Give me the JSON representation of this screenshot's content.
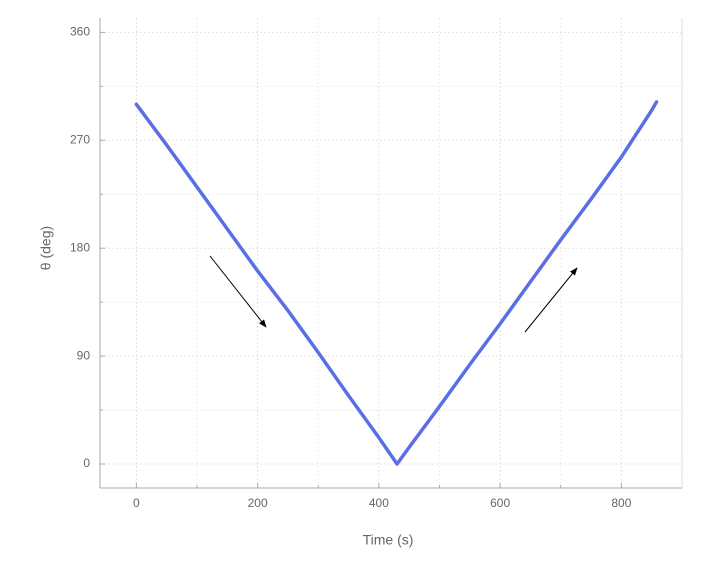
{
  "chart_data": {
    "type": "line",
    "x_label": "Time (s)",
    "y_label": "θ (deg)",
    "x": [
      0,
      50,
      100,
      150,
      200,
      250,
      300,
      350,
      400,
      430,
      450,
      500,
      550,
      600,
      650,
      700,
      750,
      800,
      850,
      858
    ],
    "series": [
      {
        "name": "θ",
        "color": "#5a6fe6",
        "values": [
          300,
          266,
          231,
          196,
          161,
          128,
          93,
          57,
          22,
          0,
          14,
          48,
          83,
          117,
          152,
          187,
          221,
          256,
          295,
          302
        ]
      }
    ],
    "xlim": [
      -60,
      900
    ],
    "xticks": [
      0,
      200,
      400,
      600,
      800
    ],
    "xminor": [
      100,
      300,
      500,
      700
    ],
    "ylim": [
      -20,
      372
    ],
    "yticks": [
      0,
      90,
      180,
      270,
      360
    ],
    "yminor": [
      45,
      135,
      225,
      315
    ],
    "grid": true
  }
}
